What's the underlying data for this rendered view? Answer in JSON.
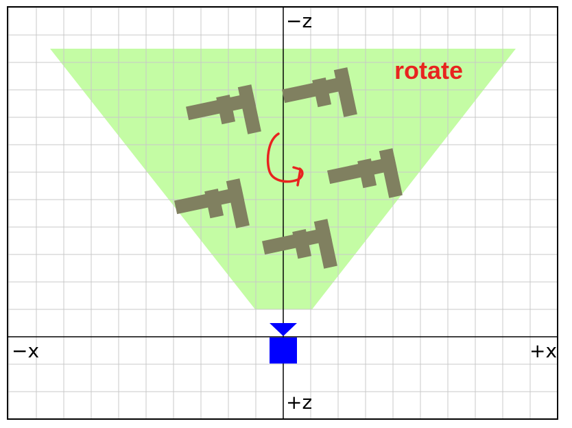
{
  "labels": {
    "neg_z": "−z",
    "pos_z": "+z",
    "neg_x": "−x",
    "pos_x": "+x",
    "annotation": "rotate"
  },
  "colors": {
    "frustum": "#c4fca4",
    "grid": "#c8c8c8",
    "axis": "#000000",
    "shape": "#808060",
    "camera": "#0000ff",
    "annotation": "#e8231f",
    "border": "#000000"
  },
  "icons": {
    "camera": "camera-icon",
    "rotate_arrow": "rotate-arrow-icon"
  },
  "objects": {
    "count": 5,
    "shape_name": "F"
  }
}
